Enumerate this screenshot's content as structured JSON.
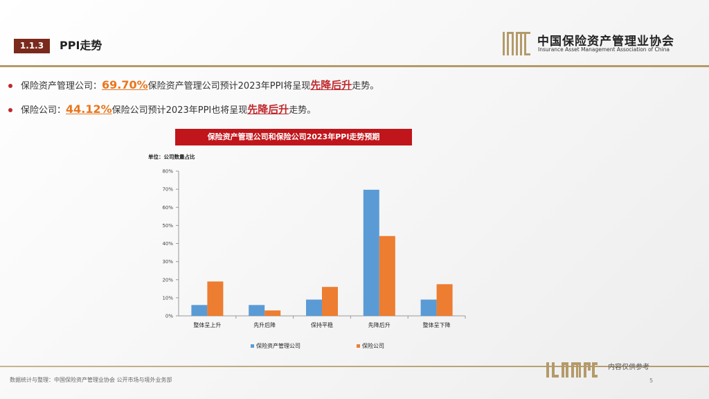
{
  "header": {
    "section_number": "1.1.3",
    "title": "PPI走势",
    "org_name_cn": "中国保险资产管理业协会",
    "org_name_en": "Insurance Asset Management Association of China",
    "logo_letters": "IAMAC"
  },
  "bullets": [
    {
      "prefix": "保险资产管理公司：",
      "percent": "69.70%",
      "text": "保险资产管理公司预计2023年PPI将呈现",
      "highlight": "先降后升",
      "suffix": "走势。"
    },
    {
      "prefix": "保险公司：",
      "percent": "44.12%",
      "text": "保险公司预计2023年PPI也将呈现",
      "highlight": "先降后升",
      "suffix": "走势。"
    }
  ],
  "chart_banner": "保险资产管理公司和保险公司2023年PPI走势预期",
  "chart_data": {
    "type": "bar",
    "unit_label": "单位：公司数量占比",
    "categories": [
      "整体呈上升",
      "先升后降",
      "保持平稳",
      "先降后升",
      "整体呈下降"
    ],
    "series": [
      {
        "name": "保险资产管理公司",
        "values": [
          6,
          6,
          9,
          69.7,
          9
        ],
        "color": "#5b9bd5"
      },
      {
        "name": "保险公司",
        "values": [
          19,
          3,
          16,
          44.12,
          17.5
        ],
        "color": "#ed7d31"
      }
    ],
    "ylim": [
      0,
      80
    ],
    "yticks": [
      0,
      10,
      20,
      30,
      40,
      50,
      60,
      70,
      80
    ],
    "ytick_suffix": "%",
    "legend_position": "bottom"
  },
  "footer": {
    "source": "数据统计与整理：中国保险资产管理业协会 公开市场与境外业务部",
    "note": "内容仅供参考",
    "page_number": "5"
  },
  "colors": {
    "accent_red": "#c0282d",
    "accent_orange": "#e8761e",
    "badge": "#7a2a1d",
    "gold": "#b49a6a"
  }
}
